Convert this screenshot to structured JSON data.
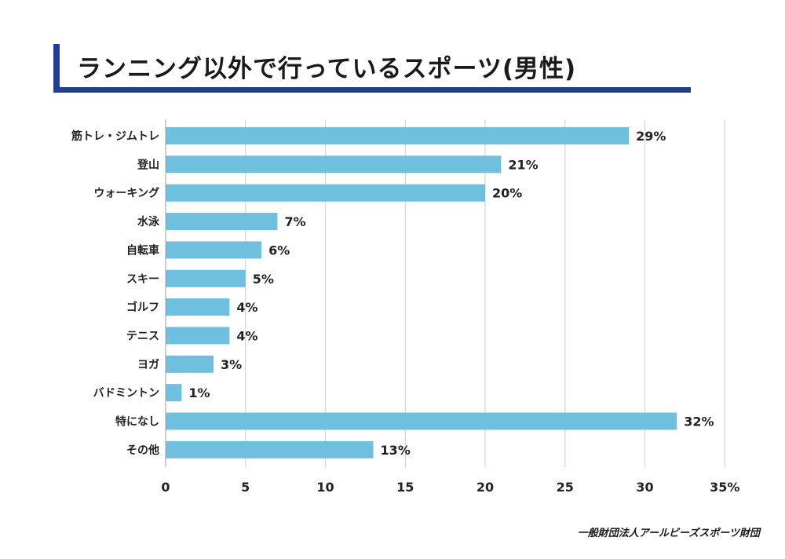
{
  "title": "ランニング以外で行っているスポーツ(男性)",
  "footer": "一般財団法人アールビーズスポーツ財団",
  "colors": {
    "bar": "#6fc0de",
    "accent": "#1f3f95",
    "grid": "#d4d4d4"
  },
  "chart_data": {
    "type": "bar",
    "orientation": "horizontal",
    "categories": [
      "筋トレ・ジムトレ",
      "登山",
      "ウォーキング",
      "水泳",
      "自転車",
      "スキー",
      "ゴルフ",
      "テニス",
      "ヨガ",
      "バドミントン",
      "特になし",
      "その他"
    ],
    "values": [
      29,
      21,
      20,
      7,
      6,
      5,
      4,
      4,
      3,
      1,
      32,
      13
    ],
    "value_labels": [
      "29%",
      "21%",
      "20%",
      "7%",
      "6%",
      "5%",
      "4%",
      "4%",
      "3%",
      "1%",
      "32%",
      "13%"
    ],
    "xlim": [
      0,
      35
    ],
    "x_ticks": [
      "0",
      "5",
      "10",
      "15",
      "20",
      "25",
      "30",
      "35%"
    ],
    "grid": true,
    "legend": "none"
  }
}
